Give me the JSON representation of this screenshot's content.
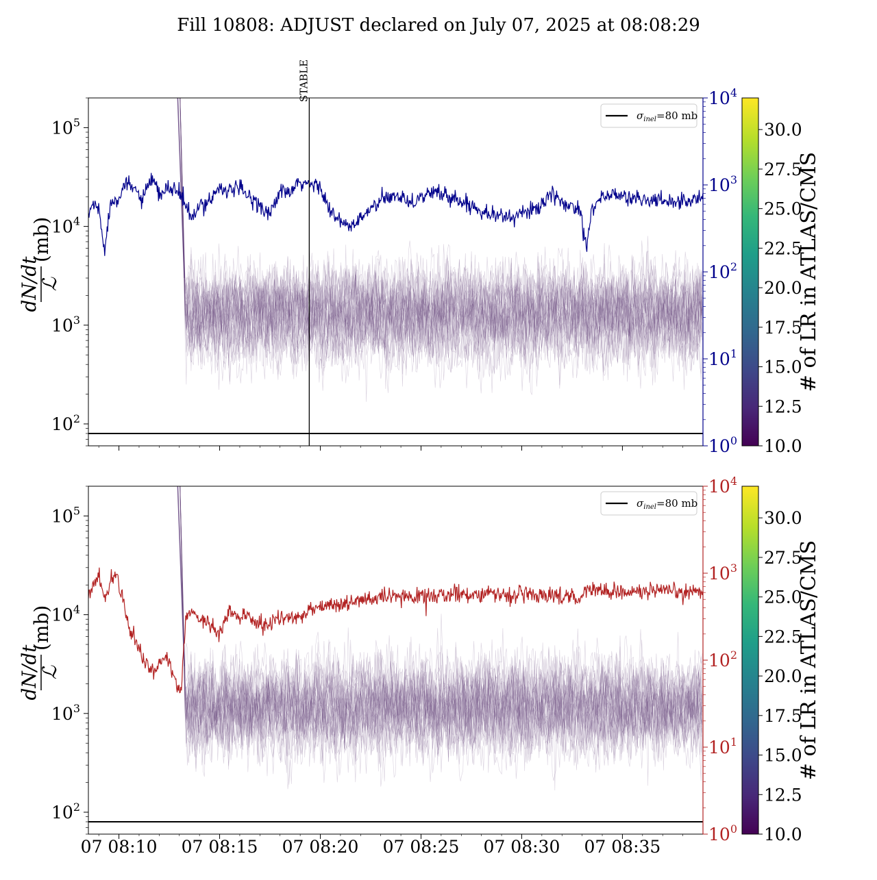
{
  "chart_data": {
    "type": "line",
    "title": "Fill 10808: ADJUST declared on July 07, 2025 at 08:08:29",
    "x_axis": {
      "type": "time",
      "range": [
        "2025-07-07 08:08:29",
        "2025-07-07 08:39:00"
      ],
      "tick_labels": [
        "07 08:10",
        "07 08:15",
        "07 08:20",
        "07 08:25",
        "07 08:30",
        "07 08:35"
      ],
      "tick_minutes": [
        10,
        15,
        20,
        25,
        30,
        35
      ]
    },
    "panels": [
      {
        "left_axis": {
          "label_fraction_num": "dN/dt",
          "label_fraction_den": "ℒ",
          "label_unit": "(mb)",
          "scale": "log",
          "ylim": [
            60,
            200000
          ],
          "ticks": [
            {
              "value": 100,
              "base": "10",
              "exp": "2"
            },
            {
              "value": 1000,
              "base": "10",
              "exp": "3"
            },
            {
              "value": 10000,
              "base": "10",
              "exp": "4"
            },
            {
              "value": 100000,
              "base": "10",
              "exp": "5"
            }
          ]
        },
        "right_axis": {
          "scale": "log",
          "ylim": [
            1,
            10000
          ],
          "color": "#00008b",
          "ticks": [
            {
              "value": 1,
              "base": "10",
              "exp": "0"
            },
            {
              "value": 10,
              "base": "10",
              "exp": "1"
            },
            {
              "value": 100,
              "base": "10",
              "exp": "2"
            },
            {
              "value": 1000,
              "base": "10",
              "exp": "3"
            },
            {
              "value": 10000,
              "base": "10",
              "exp": "4"
            }
          ]
        },
        "legend": {
          "placement": "top-right",
          "label_symbol": "σ",
          "label_sub": "inel",
          "label_rest": "=80 mb"
        },
        "reference_line": {
          "value": 80
        },
        "event": {
          "label": "STABLE",
          "minute": 19.45
        },
        "main_series": {
          "color": "#00008b",
          "shape_minutes": [
            8.48,
            8.7,
            9.0,
            9.3,
            9.6,
            9.9,
            10.3,
            10.8,
            11.2,
            11.6,
            12.0,
            12.4,
            12.8,
            13.2,
            13.6,
            14.0,
            14.5,
            15.0,
            15.5,
            16.0,
            16.5,
            17.0,
            17.5,
            18.0,
            18.5,
            19.0,
            19.5,
            20.0,
            20.5,
            21.0,
            21.5,
            22.0,
            22.5,
            23.0,
            23.5,
            24.0,
            24.5,
            25.0,
            25.5,
            26.0,
            26.5,
            27.0,
            27.5,
            28.0,
            28.5,
            29.0,
            29.5,
            30.0,
            30.5,
            31.0,
            31.5,
            32.0,
            32.5,
            32.9,
            33.2,
            33.5,
            34.0,
            34.5,
            35.0,
            35.5,
            36.0,
            36.5,
            37.0,
            37.5,
            38.0,
            38.5,
            39.0
          ],
          "shape_values": [
            430,
            620,
            520,
            180,
            650,
            700,
            1000,
            900,
            650,
            1200,
            750,
            900,
            900,
            680,
            400,
            550,
            680,
            950,
            850,
            900,
            720,
            600,
            450,
            850,
            800,
            1050,
            1000,
            1000,
            480,
            370,
            330,
            400,
            530,
            650,
            720,
            780,
            620,
            720,
            820,
            800,
            720,
            640,
            580,
            520,
            470,
            430,
            430,
            460,
            520,
            600,
            750,
            640,
            560,
            540,
            200,
            560,
            720,
            780,
            740,
            700,
            680,
            660,
            650,
            660,
            650,
            680,
            720
          ]
        }
      },
      {
        "left_axis": {
          "label_fraction_num": "dN/dt",
          "label_fraction_den": "ℒ",
          "label_unit": "(mb)",
          "scale": "log",
          "ylim": [
            60,
            200000
          ],
          "ticks": [
            {
              "value": 100,
              "base": "10",
              "exp": "2"
            },
            {
              "value": 1000,
              "base": "10",
              "exp": "3"
            },
            {
              "value": 10000,
              "base": "10",
              "exp": "4"
            },
            {
              "value": 100000,
              "base": "10",
              "exp": "5"
            }
          ]
        },
        "right_axis": {
          "scale": "log",
          "ylim": [
            1,
            10000
          ],
          "color": "#b22222",
          "ticks": [
            {
              "value": 1,
              "base": "10",
              "exp": "0"
            },
            {
              "value": 10,
              "base": "10",
              "exp": "1"
            },
            {
              "value": 100,
              "base": "10",
              "exp": "2"
            },
            {
              "value": 1000,
              "base": "10",
              "exp": "3"
            },
            {
              "value": 10000,
              "base": "10",
              "exp": "4"
            }
          ]
        },
        "legend": {
          "placement": "top-right",
          "label_symbol": "σ",
          "label_sub": "inel",
          "label_rest": "=80 mb"
        },
        "reference_line": {
          "value": 80
        },
        "main_series": {
          "color": "#b22222",
          "shape_minutes": [
            8.48,
            8.7,
            9.0,
            9.3,
            9.6,
            9.9,
            10.2,
            10.5,
            10.8,
            11.1,
            11.4,
            11.7,
            12.0,
            12.3,
            12.6,
            12.9,
            13.1,
            13.3,
            13.6,
            14.0,
            14.5,
            15.0,
            15.5,
            16.0,
            16.5,
            17.0,
            17.5,
            18.0,
            18.5,
            19.0,
            19.5,
            20.0,
            21.0,
            22.0,
            23.0,
            24.0,
            25.0,
            26.0,
            27.0,
            28.0,
            29.0,
            30.0,
            31.0,
            32.0,
            32.5,
            32.9,
            33.1,
            33.5,
            34.0,
            35.0,
            36.0,
            37.0,
            38.0,
            39.0
          ],
          "shape_values": [
            550,
            700,
            950,
            500,
            800,
            1050,
            480,
            250,
            170,
            120,
            90,
            75,
            90,
            110,
            80,
            45,
            50,
            260,
            380,
            300,
            260,
            200,
            370,
            300,
            320,
            250,
            260,
            320,
            290,
            320,
            400,
            420,
            440,
            480,
            520,
            530,
            540,
            560,
            580,
            580,
            570,
            560,
            560,
            550,
            560,
            450,
            700,
            650,
            620,
            620,
            610,
            610,
            600,
            620
          ]
        }
      }
    ],
    "background_traces": {
      "count": 30,
      "color": "#6a4a80",
      "spike_minute": 12.95,
      "typical_range": [
        300,
        8000
      ]
    },
    "colorbar": {
      "label": "# of LR in ATLAS/CMS",
      "range": [
        10,
        32
      ],
      "colormap": "viridis",
      "ticks": [
        {
          "value": 10.0,
          "label": "10.0"
        },
        {
          "value": 12.5,
          "label": "12.5"
        },
        {
          "value": 15.0,
          "label": "15.0"
        },
        {
          "value": 17.5,
          "label": "17.5"
        },
        {
          "value": 20.0,
          "label": "20.0"
        },
        {
          "value": 22.5,
          "label": "22.5"
        },
        {
          "value": 25.0,
          "label": "25.0"
        },
        {
          "value": 27.5,
          "label": "27.5"
        },
        {
          "value": 30.0,
          "label": "30.0"
        }
      ]
    }
  }
}
